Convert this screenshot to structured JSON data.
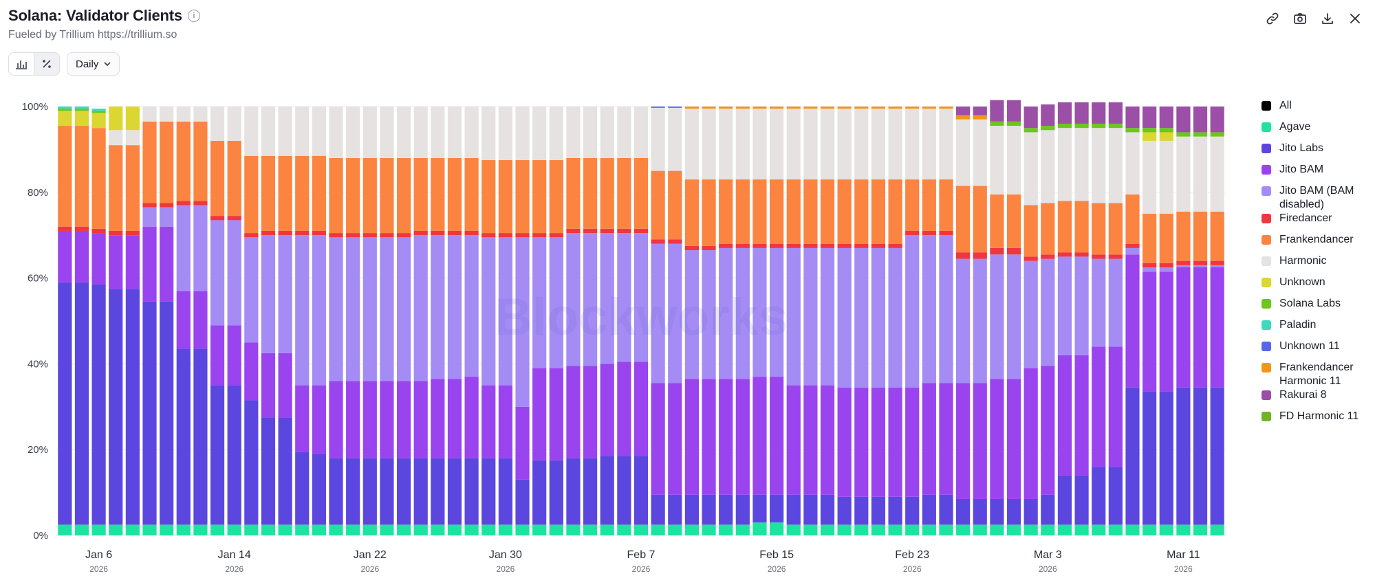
{
  "header": {
    "title": "Solana: Validator Clients",
    "info_icon": "info-icon",
    "subtitle": "Fueled by Trillium https://trillium.so"
  },
  "toolbar": {
    "bar_icon": "bar-chart-icon",
    "percent_icon": "percent-icon",
    "interval_label": "Daily",
    "interval_icon": "chevron-down-icon"
  },
  "top_actions": [
    "link-icon",
    "camera-icon",
    "download-icon",
    "close-icon"
  ],
  "watermark": "Blockworks",
  "colors": {
    "All": "#000000",
    "Agave": "#1ee3a0",
    "Jito Labs": "#5b47e0",
    "Jito BAM": "#9a44f0",
    "Jito BAM (BAM disabled)": "#a48cf4",
    "Firedancer": "#f0363f",
    "Frankendancer": "#fb8441",
    "Harmonic": "#e6e2e2",
    "Unknown": "#dcd632",
    "Solana Labs": "#6cc61c",
    "Paladin": "#3ed9bf",
    "Unknown 11": "#5566ea",
    "Frankendancer Harmonic 11": "#f49418",
    "Rakurai 8": "#9b4fa6",
    "FD Harmonic 11": "#6fb425"
  },
  "legend": [
    {
      "label": "All",
      "key": "All"
    },
    {
      "label": "Agave",
      "key": "Agave"
    },
    {
      "label": "Jito Labs",
      "key": "Jito Labs"
    },
    {
      "label": "Jito BAM",
      "key": "Jito BAM"
    },
    {
      "label": "Jito BAM (BAM disabled)",
      "key": "Jito BAM (BAM disabled)"
    },
    {
      "label": "Firedancer",
      "key": "Firedancer"
    },
    {
      "label": "Frankendancer",
      "key": "Frankendancer"
    },
    {
      "label": "Harmonic",
      "key": "Harmonic"
    },
    {
      "label": "Unknown",
      "key": "Unknown"
    },
    {
      "label": "Solana Labs",
      "key": "Solana Labs"
    },
    {
      "label": "Paladin",
      "key": "Paladin"
    },
    {
      "label": "Unknown 11",
      "key": "Unknown 11"
    },
    {
      "label": "Frankendancer Harmonic 11",
      "key": "Frankendancer Harmonic 11"
    },
    {
      "label": "Rakurai 8",
      "key": "Rakurai 8"
    },
    {
      "label": "FD Harmonic 11",
      "key": "FD Harmonic 11"
    }
  ],
  "chart_data": {
    "type": "bar",
    "stacked": true,
    "normalized": true,
    "title": "Solana: Validator Clients",
    "ylim": [
      0,
      100
    ],
    "yticks": [
      "0%",
      "20%",
      "40%",
      "60%",
      "80%",
      "100%"
    ],
    "xticks": [
      {
        "label": "Jan 6",
        "year": "2026",
        "index": 2
      },
      {
        "label": "Jan 14",
        "year": "2026",
        "index": 10
      },
      {
        "label": "Jan 22",
        "year": "2026",
        "index": 18
      },
      {
        "label": "Jan 30",
        "year": "2026",
        "index": 26
      },
      {
        "label": "Feb 7",
        "year": "2026",
        "index": 34
      },
      {
        "label": "Feb 15",
        "year": "2026",
        "index": 42
      },
      {
        "label": "Feb 23",
        "year": "2026",
        "index": 50
      },
      {
        "label": "Mar 3",
        "year": "2026",
        "index": 58
      },
      {
        "label": "Mar 11",
        "year": "2026",
        "index": 66
      }
    ],
    "series_order": [
      "Agave",
      "Jito Labs",
      "Jito BAM",
      "Jito BAM (BAM disabled)",
      "Firedancer",
      "Frankendancer",
      "Harmonic",
      "Unknown",
      "Solana Labs",
      "Paladin",
      "Unknown 11",
      "Frankendancer Harmonic 11",
      "Rakurai 8",
      "FD Harmonic 11"
    ],
    "days": [
      [
        2.5,
        56.5,
        12,
        0,
        1,
        23.5,
        0,
        3.5,
        0.5,
        0.5,
        0,
        0,
        0,
        0
      ],
      [
        2.5,
        56.5,
        12,
        0,
        1,
        23.5,
        0,
        3.5,
        0.5,
        0.5,
        0,
        0,
        0,
        0
      ],
      [
        2.5,
        56,
        12,
        0,
        1,
        23.5,
        0,
        3.5,
        0.5,
        0.5,
        0,
        0,
        0,
        0
      ],
      [
        2.5,
        55,
        12.5,
        0,
        1,
        20,
        3.5,
        5.5,
        0,
        0,
        0,
        0,
        0,
        0
      ],
      [
        2.5,
        55,
        12.5,
        0,
        1,
        20,
        3.5,
        5.5,
        0,
        0,
        0,
        0,
        0,
        0
      ],
      [
        2.5,
        52,
        17.5,
        4.5,
        1,
        19,
        3.5,
        0,
        0,
        0,
        0,
        0,
        0,
        0
      ],
      [
        2.5,
        52,
        17.5,
        4.5,
        1,
        19,
        3.5,
        0,
        0,
        0,
        0,
        0,
        0,
        0
      ],
      [
        2.5,
        41,
        13.5,
        20,
        1,
        18.5,
        3.5,
        0,
        0,
        0,
        0,
        0,
        0,
        0
      ],
      [
        2.5,
        41,
        13.5,
        20,
        1,
        18.5,
        3.5,
        0,
        0,
        0,
        0,
        0,
        0,
        0
      ],
      [
        2.5,
        32.5,
        14,
        24.5,
        1,
        17.5,
        8,
        0,
        0,
        0,
        0,
        0,
        0,
        0
      ],
      [
        2.5,
        32.5,
        14,
        24.5,
        1,
        17.5,
        8,
        0,
        0,
        0,
        0,
        0,
        0,
        0
      ],
      [
        2.5,
        29,
        13.5,
        24.5,
        1,
        18,
        11.5,
        0,
        0,
        0,
        0,
        0,
        0,
        0
      ],
      [
        2.5,
        25,
        15,
        27.5,
        1,
        17.5,
        11.5,
        0,
        0,
        0,
        0,
        0,
        0,
        0
      ],
      [
        2.5,
        25,
        15,
        27.5,
        1,
        17.5,
        11.5,
        0,
        0,
        0,
        0,
        0,
        0,
        0
      ],
      [
        2.5,
        17,
        15.5,
        35,
        1,
        17.5,
        11.5,
        0,
        0,
        0,
        0,
        0,
        0,
        0
      ],
      [
        2.5,
        16.5,
        16,
        35,
        1,
        17.5,
        11.5,
        0,
        0,
        0,
        0,
        0,
        0,
        0
      ],
      [
        2.5,
        15.5,
        18,
        33.5,
        1,
        17.5,
        12,
        0,
        0,
        0,
        0,
        0,
        0,
        0
      ],
      [
        2.5,
        15.5,
        18,
        33.5,
        1,
        17.5,
        12,
        0,
        0,
        0,
        0,
        0,
        0,
        0
      ],
      [
        2.5,
        15.5,
        18,
        33.5,
        1,
        17.5,
        12,
        0,
        0,
        0,
        0,
        0,
        0,
        0
      ],
      [
        2.5,
        15.5,
        18,
        33.5,
        1,
        17.5,
        12,
        0,
        0,
        0,
        0,
        0,
        0,
        0
      ],
      [
        2.5,
        15.5,
        18,
        33.5,
        1,
        17.5,
        12,
        0,
        0,
        0,
        0,
        0,
        0,
        0
      ],
      [
        2.5,
        15.5,
        18,
        34,
        1,
        17,
        12,
        0,
        0,
        0,
        0,
        0,
        0,
        0
      ],
      [
        2.5,
        15.5,
        18.5,
        33.5,
        1,
        17,
        12,
        0,
        0,
        0,
        0,
        0,
        0,
        0
      ],
      [
        2.5,
        15.5,
        18.5,
        33.5,
        1,
        17,
        12,
        0,
        0,
        0,
        0,
        0,
        0,
        0
      ],
      [
        2.5,
        15.5,
        19,
        33,
        1,
        17,
        12,
        0,
        0,
        0,
        0,
        0,
        0,
        0
      ],
      [
        2.5,
        15.5,
        17,
        34.5,
        1,
        17,
        12.5,
        0,
        0,
        0,
        0,
        0,
        0,
        0
      ],
      [
        2.5,
        15.5,
        17,
        34.5,
        1,
        17,
        12.5,
        0,
        0,
        0,
        0,
        0,
        0,
        0
      ],
      [
        2.5,
        10.5,
        17,
        39.5,
        1,
        17,
        12.5,
        0,
        0,
        0,
        0,
        0,
        0,
        0
      ],
      [
        2.5,
        15,
        21.5,
        30.5,
        1,
        17,
        12.5,
        0,
        0,
        0,
        0,
        0,
        0,
        0
      ],
      [
        2.5,
        15,
        21.5,
        30.5,
        1,
        17,
        12.5,
        0,
        0,
        0,
        0,
        0,
        0,
        0
      ],
      [
        2.5,
        15.5,
        21.5,
        31,
        1,
        16.5,
        12,
        0,
        0,
        0,
        0,
        0,
        0,
        0
      ],
      [
        2.5,
        15.5,
        21.5,
        31,
        1,
        16.5,
        12,
        0,
        0,
        0,
        0,
        0,
        0,
        0
      ],
      [
        2.5,
        16,
        21.5,
        30.5,
        1,
        16.5,
        12,
        0,
        0,
        0,
        0,
        0,
        0,
        0
      ],
      [
        2.5,
        16,
        22,
        30,
        1,
        16.5,
        12,
        0,
        0,
        0,
        0,
        0,
        0,
        0
      ],
      [
        2.5,
        16,
        22,
        30,
        1,
        16.5,
        12,
        0,
        0,
        0,
        0,
        0,
        0,
        0
      ],
      [
        2.5,
        7,
        26,
        32.5,
        1,
        16,
        14.7,
        0,
        0,
        0,
        0.3,
        0,
        0,
        0
      ],
      [
        2.5,
        7,
        26,
        32.5,
        1,
        16,
        14.7,
        0,
        0,
        0,
        0.3,
        0,
        0,
        0
      ],
      [
        2.5,
        7,
        27,
        30,
        1,
        15.5,
        16.5,
        0,
        0,
        0,
        0,
        0.5,
        0,
        0
      ],
      [
        2.5,
        7,
        27,
        30,
        1,
        15.5,
        16.5,
        0,
        0,
        0,
        0,
        0.5,
        0,
        0
      ],
      [
        2.5,
        7,
        27,
        30.5,
        1,
        15,
        16.5,
        0,
        0,
        0,
        0,
        0.5,
        0,
        0
      ],
      [
        2.5,
        7,
        27,
        30.5,
        1,
        15,
        16.5,
        0,
        0,
        0,
        0,
        0.5,
        0,
        0
      ],
      [
        3,
        6.5,
        27.5,
        30,
        1,
        15,
        16.5,
        0,
        0,
        0,
        0,
        0.5,
        0,
        0
      ],
      [
        3,
        6.5,
        27.5,
        30,
        1,
        15,
        16.5,
        0,
        0,
        0,
        0,
        0.5,
        0,
        0
      ],
      [
        2.5,
        7,
        25.5,
        32,
        1,
        15,
        16.5,
        0,
        0,
        0,
        0,
        0.5,
        0,
        0
      ],
      [
        2.5,
        7,
        25.5,
        32,
        1,
        15,
        16.5,
        0,
        0,
        0,
        0,
        0.5,
        0,
        0
      ],
      [
        2.5,
        7,
        25.5,
        32,
        1,
        15,
        16.5,
        0,
        0,
        0,
        0,
        0.5,
        0,
        0
      ],
      [
        2.5,
        6.5,
        25.5,
        32.5,
        1,
        15,
        16.5,
        0,
        0,
        0,
        0,
        0.5,
        0,
        0
      ],
      [
        2.5,
        6.5,
        25.5,
        32.5,
        1,
        15,
        16.5,
        0,
        0,
        0,
        0,
        0.5,
        0,
        0
      ],
      [
        2.5,
        6.5,
        25.5,
        32.5,
        1,
        15,
        16.5,
        0,
        0,
        0,
        0,
        0.5,
        0,
        0
      ],
      [
        2.5,
        6.5,
        25.5,
        32.5,
        1,
        15,
        16.5,
        0,
        0,
        0,
        0,
        0.5,
        0,
        0
      ],
      [
        2.5,
        6.5,
        25.5,
        35.5,
        1,
        12,
        16.5,
        0,
        0,
        0,
        0,
        0.5,
        0,
        0
      ],
      [
        2.5,
        7,
        26,
        34.5,
        1,
        12,
        16.5,
        0,
        0,
        0,
        0,
        0.5,
        0,
        0
      ],
      [
        2.5,
        7,
        26,
        34.5,
        1,
        12,
        16.5,
        0,
        0,
        0,
        0,
        0.5,
        0,
        0
      ],
      [
        2.5,
        6,
        27,
        29,
        1.5,
        15.5,
        15.5,
        0,
        0,
        0,
        0,
        1,
        2,
        0
      ],
      [
        2.5,
        6,
        27,
        29,
        1.5,
        15.5,
        15.5,
        0,
        0,
        0,
        0,
        1,
        2,
        0
      ],
      [
        2.5,
        6,
        28,
        29,
        1.5,
        12.5,
        16,
        0,
        1,
        0,
        0,
        0,
        5,
        0
      ],
      [
        2.5,
        6,
        28,
        29,
        1.5,
        12.5,
        16,
        0,
        1,
        0,
        0,
        0,
        5,
        0
      ],
      [
        2.5,
        6,
        30.5,
        25,
        1,
        12,
        17,
        0,
        1,
        0,
        0,
        0,
        5,
        0
      ],
      [
        2.5,
        7,
        30,
        25,
        1,
        12,
        17,
        0,
        1,
        0,
        0,
        0,
        5,
        0
      ],
      [
        2.5,
        11.5,
        28,
        23,
        1,
        12,
        17,
        0,
        1,
        0,
        0,
        0,
        5,
        0
      ],
      [
        2.5,
        11.5,
        28,
        23,
        1,
        12,
        17,
        0,
        1,
        0,
        0,
        0,
        5,
        0
      ],
      [
        2.5,
        13.5,
        28,
        20.5,
        1,
        12,
        17.5,
        0,
        1,
        0,
        0,
        0,
        5,
        0
      ],
      [
        2.5,
        13.5,
        28,
        20.5,
        1,
        12,
        17.5,
        0,
        1,
        0,
        0,
        0,
        5,
        0
      ],
      [
        2.5,
        32,
        31,
        1.5,
        1,
        11.5,
        14.5,
        0,
        1,
        0,
        0,
        0,
        5,
        0
      ],
      [
        2.5,
        31,
        28,
        1,
        1,
        11.5,
        17,
        2,
        1,
        0,
        0,
        0,
        5,
        0
      ],
      [
        2.5,
        31,
        28,
        1,
        1,
        11.5,
        17,
        2,
        1,
        0,
        0,
        0,
        5,
        0
      ],
      [
        2.5,
        32,
        28,
        0.5,
        1,
        11.5,
        17.5,
        0,
        1,
        0,
        0,
        0,
        6,
        0
      ],
      [
        2.5,
        32,
        28,
        0.5,
        1,
        11.5,
        17.5,
        0,
        1,
        0,
        0,
        0,
        6,
        0
      ],
      [
        2.5,
        32,
        28,
        0.5,
        1,
        11.5,
        17.5,
        0,
        1,
        0,
        0,
        0,
        6,
        0
      ]
    ]
  }
}
